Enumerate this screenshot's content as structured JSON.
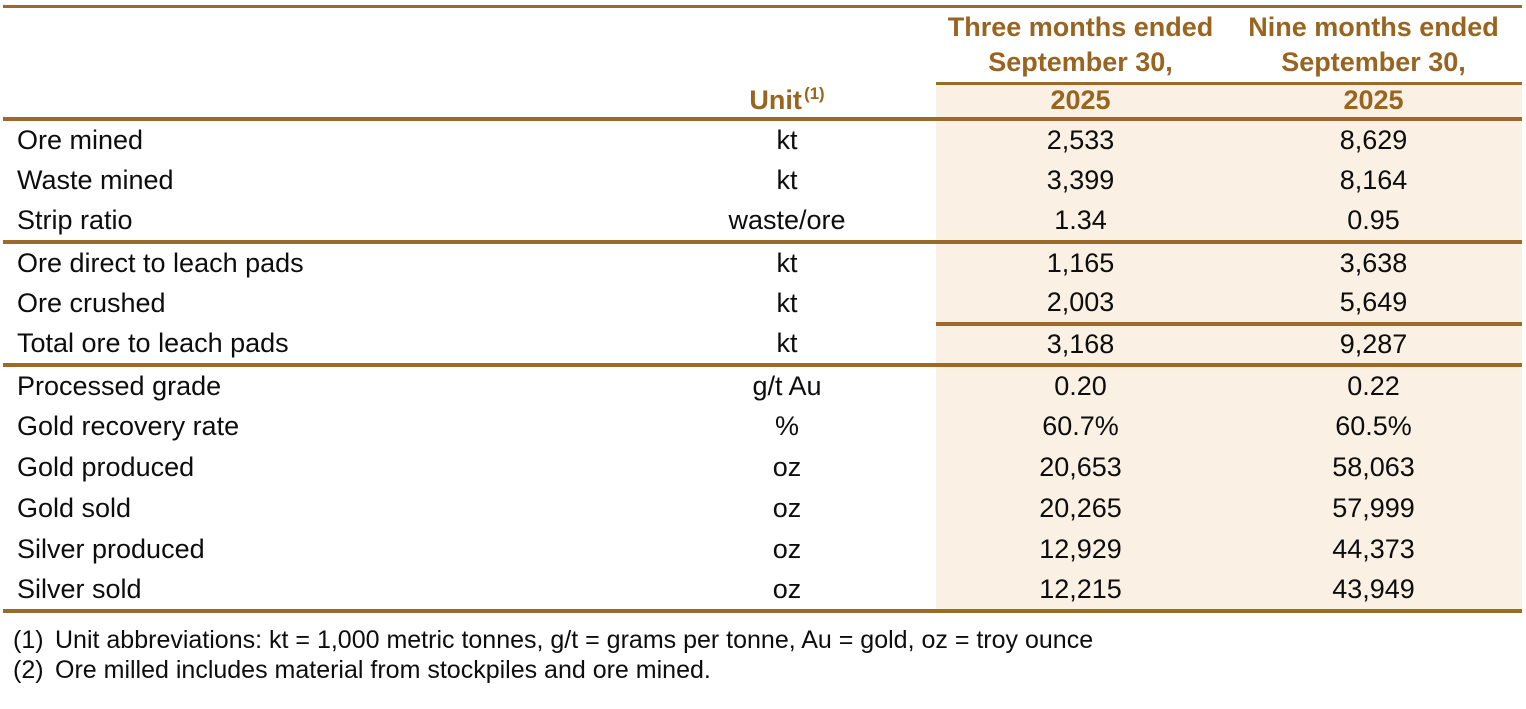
{
  "table": {
    "period_headers": [
      {
        "line1": "Three months ended",
        "line2": "September 30,"
      },
      {
        "line1": "Nine months ended",
        "line2": "September 30,"
      }
    ],
    "unit_header": "Unit",
    "unit_footnote_marker": "(1)",
    "year_headers": [
      "2025",
      "2025"
    ],
    "rows": [
      {
        "label": "Ore mined",
        "unit": "kt",
        "three_months": "2,533",
        "nine_months": "8,629"
      },
      {
        "label": "Waste mined",
        "unit": "kt",
        "three_months": "3,399",
        "nine_months": "8,164"
      },
      {
        "label": "Strip ratio",
        "unit": "waste/ore",
        "three_months": "1.34",
        "nine_months": "0.95"
      },
      {
        "label": "Ore direct to leach pads",
        "unit": "kt",
        "three_months": "1,165",
        "nine_months": "3,638"
      },
      {
        "label": "Ore crushed",
        "unit": "kt",
        "three_months": "2,003",
        "nine_months": "5,649"
      },
      {
        "label": "Total ore to leach pads",
        "unit": "kt",
        "three_months": "3,168",
        "nine_months": "9,287"
      },
      {
        "label": "Processed grade",
        "unit": "g/t Au",
        "three_months": "0.20",
        "nine_months": "0.22"
      },
      {
        "label": "Gold recovery rate",
        "unit": "%",
        "three_months": "60.7%",
        "nine_months": "60.5%"
      },
      {
        "label": "Gold produced",
        "unit": "oz",
        "three_months": "20,653",
        "nine_months": "58,063"
      },
      {
        "label": "Gold sold",
        "unit": "oz",
        "three_months": "20,265",
        "nine_months": "57,999"
      },
      {
        "label": "Silver produced",
        "unit": "oz",
        "three_months": "12,929",
        "nine_months": "44,373"
      },
      {
        "label": "Silver sold",
        "unit": "oz",
        "three_months": "12,215",
        "nine_months": "43,949"
      }
    ]
  },
  "footnotes": [
    {
      "marker": "(1)",
      "text": "Unit abbreviations: kt = 1,000 metric tonnes, g/t = grams per tonne, Au = gold, oz = troy ounce"
    },
    {
      "marker": "(2)",
      "text": "Ore milled includes material from stockpiles and ore mined."
    }
  ],
  "colors": {
    "rule_brown": "#9C6A28",
    "header_text_brown": "#996420",
    "data_column_background": "#FAF0E4",
    "body_text": "#0d0d0d"
  }
}
